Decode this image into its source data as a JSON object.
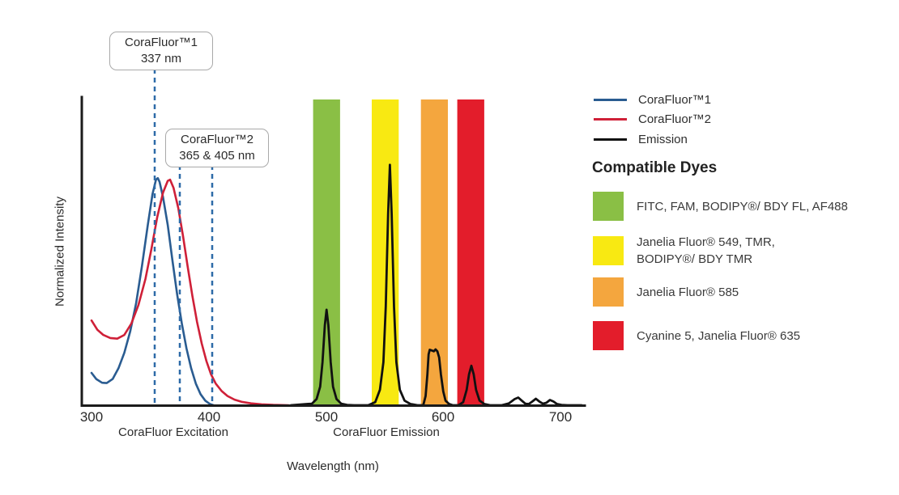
{
  "figure": {
    "ylabel": "Normalized Intensity",
    "xlabel": "Wavelength (nm)",
    "excitation_caption": "CoraFluor Excitation",
    "emission_caption": "CoraFluor Emission"
  },
  "callouts": [
    {
      "line1": "CoraFluor™1",
      "line2": "337 nm"
    },
    {
      "line1": "CoraFluor™2",
      "line2": "365 & 405 nm"
    }
  ],
  "legend": {
    "items": [
      {
        "label": "CoraFluor™1",
        "color": "#2a5c91"
      },
      {
        "label": "CoraFluor™2",
        "color": "#cf2038"
      },
      {
        "label": "Emission",
        "color": "#111111"
      }
    ]
  },
  "compatible_dyes": {
    "heading": "Compatible Dyes",
    "items": [
      {
        "color": "#8abf45",
        "line1": "FITC, FAM, BODIPY®/ BDY FL, AF488",
        "line2": ""
      },
      {
        "color": "#f8e912",
        "line1": "Janelia Fluor® 549, TMR,",
        "line2": "BODIPY®/ BDY TMR"
      },
      {
        "color": "#f4a63e",
        "line1": "Janelia Fluor® 585",
        "line2": ""
      },
      {
        "color": "#e31d2b",
        "line1": "Cyanine 5, Janelia Fluor® 635",
        "line2": ""
      }
    ]
  },
  "chart_data": {
    "type": "line",
    "title": "CoraFluor excitation and emission spectra with compatible dye bands",
    "xlabel": "Wavelength (nm)",
    "ylabel": "Normalized Intensity",
    "xlim": [
      292,
      720
    ],
    "ylim": [
      0,
      1
    ],
    "grid": false,
    "x_ticks": [
      300,
      400,
      500,
      600,
      700
    ],
    "laser_lines_nm": [
      337,
      365,
      405
    ],
    "laser_line_color": "#2e6ba8",
    "bands": [
      {
        "name": "green-band",
        "color": "#8abf45",
        "range_nm": [
          489,
          512
        ]
      },
      {
        "name": "yellow-band",
        "color": "#f8e912",
        "range_nm": [
          539,
          562
        ]
      },
      {
        "name": "orange-band",
        "color": "#f4a63e",
        "range_nm": [
          581,
          604
        ]
      },
      {
        "name": "red-band",
        "color": "#e31d2b",
        "range_nm": [
          612,
          635
        ]
      }
    ],
    "series": [
      {
        "name": "CoraFluor™1",
        "color": "#2a5c91",
        "width": 2.6,
        "points": [
          [
            300,
            0.105
          ],
          [
            304,
            0.085
          ],
          [
            309,
            0.073
          ],
          [
            313,
            0.072
          ],
          [
            318,
            0.085
          ],
          [
            323,
            0.12
          ],
          [
            328,
            0.17
          ],
          [
            333,
            0.24
          ],
          [
            338,
            0.33
          ],
          [
            343,
            0.45
          ],
          [
            348,
            0.585
          ],
          [
            352,
            0.685
          ],
          [
            355,
            0.732
          ],
          [
            356.5,
            0.737
          ],
          [
            358,
            0.725
          ],
          [
            361,
            0.675
          ],
          [
            365,
            0.585
          ],
          [
            369,
            0.47
          ],
          [
            373,
            0.36
          ],
          [
            377,
            0.265
          ],
          [
            381,
            0.185
          ],
          [
            385,
            0.12
          ],
          [
            389,
            0.07
          ],
          [
            393,
            0.036
          ],
          [
            397,
            0.015
          ],
          [
            401,
            0.004
          ],
          [
            404,
            0
          ]
        ]
      },
      {
        "name": "CoraFluor™2",
        "color": "#cf2038",
        "width": 2.6,
        "points": [
          [
            300,
            0.275
          ],
          [
            305,
            0.245
          ],
          [
            310,
            0.228
          ],
          [
            316,
            0.218
          ],
          [
            322,
            0.216
          ],
          [
            328,
            0.228
          ],
          [
            334,
            0.265
          ],
          [
            340,
            0.325
          ],
          [
            346,
            0.41
          ],
          [
            351,
            0.505
          ],
          [
            356,
            0.61
          ],
          [
            361,
            0.69
          ],
          [
            365,
            0.728
          ],
          [
            367,
            0.732
          ],
          [
            370,
            0.705
          ],
          [
            374,
            0.64
          ],
          [
            378,
            0.55
          ],
          [
            382,
            0.45
          ],
          [
            386,
            0.355
          ],
          [
            390,
            0.27
          ],
          [
            394,
            0.2
          ],
          [
            398,
            0.143
          ],
          [
            402,
            0.1
          ],
          [
            406,
            0.07
          ],
          [
            411,
            0.046
          ],
          [
            416,
            0.03
          ],
          [
            422,
            0.018
          ],
          [
            428,
            0.011
          ],
          [
            436,
            0.006
          ],
          [
            445,
            0.003
          ],
          [
            455,
            0.001
          ],
          [
            468,
            0
          ]
        ]
      },
      {
        "name": "Emission",
        "color": "#111111",
        "width": 2.8,
        "points": [
          [
            470,
            0
          ],
          [
            488,
            0.005
          ],
          [
            492,
            0.02
          ],
          [
            495,
            0.06
          ],
          [
            497,
            0.14
          ],
          [
            499,
            0.26
          ],
          [
            500.5,
            0.31
          ],
          [
            502,
            0.26
          ],
          [
            504,
            0.14
          ],
          [
            506,
            0.06
          ],
          [
            509,
            0.02
          ],
          [
            513,
            0.005
          ],
          [
            518,
            0.001
          ],
          [
            524,
            0
          ],
          [
            536,
            0
          ],
          [
            542,
            0.01
          ],
          [
            546,
            0.05
          ],
          [
            549,
            0.14
          ],
          [
            551,
            0.32
          ],
          [
            553,
            0.62
          ],
          [
            554.5,
            0.78
          ],
          [
            556,
            0.62
          ],
          [
            558,
            0.32
          ],
          [
            560,
            0.14
          ],
          [
            563,
            0.05
          ],
          [
            567,
            0.015
          ],
          [
            572,
            0.004
          ],
          [
            578,
            0
          ],
          [
            583,
            0
          ],
          [
            585,
            0.03
          ],
          [
            586.5,
            0.1
          ],
          [
            587.5,
            0.165
          ],
          [
            588.5,
            0.18
          ],
          [
            590,
            0.178
          ],
          [
            592,
            0.175
          ],
          [
            593.5,
            0.181
          ],
          [
            595,
            0.175
          ],
          [
            596.5,
            0.155
          ],
          [
            598,
            0.1
          ],
          [
            600,
            0.045
          ],
          [
            602,
            0.015
          ],
          [
            605,
            0.004
          ],
          [
            608,
            0
          ],
          [
            613,
            0
          ],
          [
            617,
            0.01
          ],
          [
            620,
            0.05
          ],
          [
            622,
            0.1
          ],
          [
            624,
            0.128
          ],
          [
            626,
            0.1
          ],
          [
            628,
            0.05
          ],
          [
            631,
            0.015
          ],
          [
            635,
            0.004
          ],
          [
            640,
            0
          ],
          [
            650,
            0
          ],
          [
            656,
            0.006
          ],
          [
            661,
            0.02
          ],
          [
            664,
            0.025
          ],
          [
            667,
            0.015
          ],
          [
            670,
            0.005
          ],
          [
            673,
            0.004
          ],
          [
            676,
            0.012
          ],
          [
            679,
            0.021
          ],
          [
            682,
            0.012
          ],
          [
            685,
            0.005
          ],
          [
            688,
            0.008
          ],
          [
            691,
            0.017
          ],
          [
            694,
            0.012
          ],
          [
            697,
            0.004
          ],
          [
            701,
            0.001
          ],
          [
            706,
            0
          ],
          [
            718,
            0
          ]
        ]
      }
    ]
  }
}
